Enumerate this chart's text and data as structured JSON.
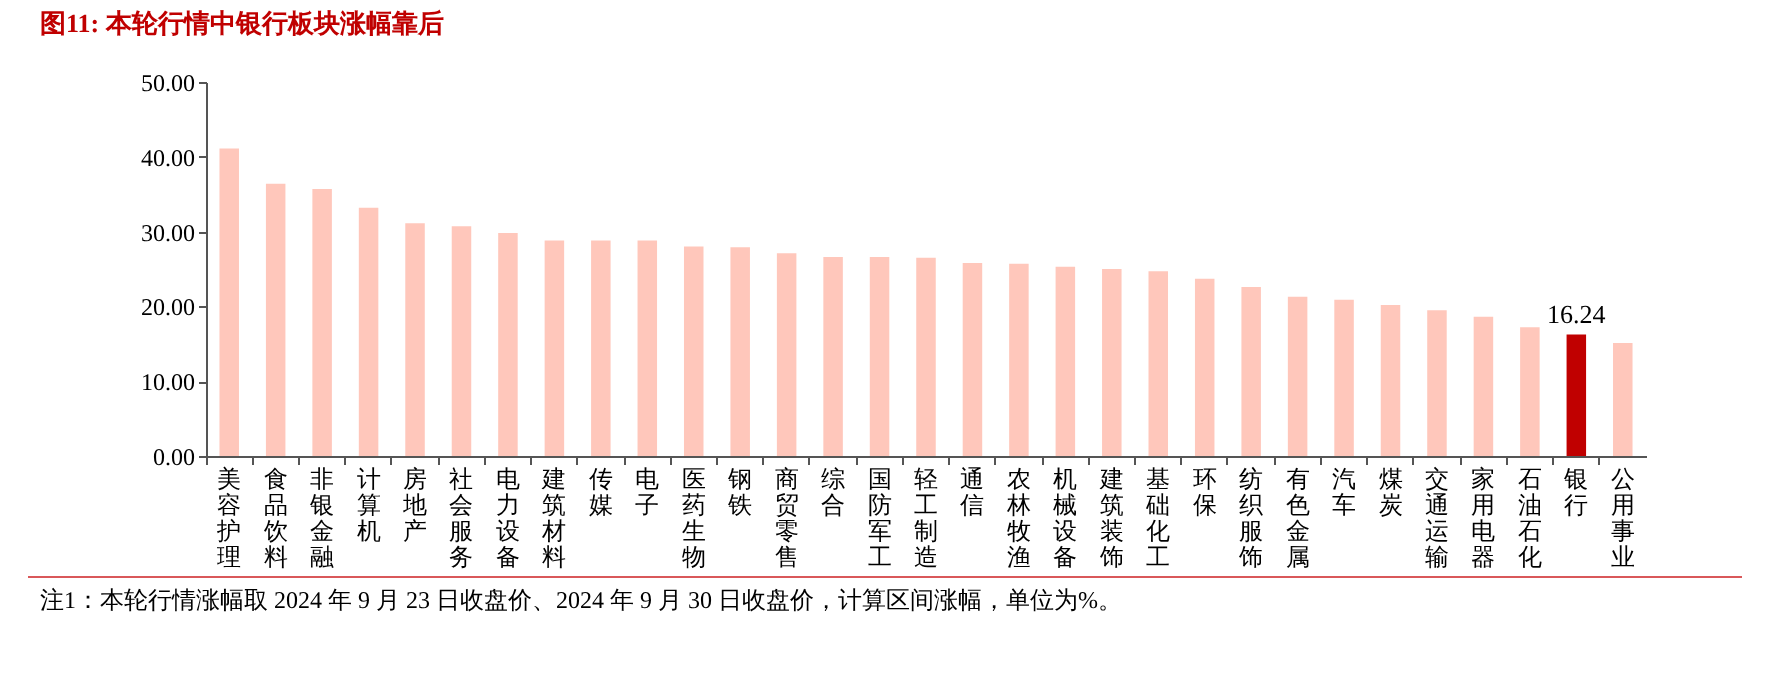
{
  "chart_data": {
    "type": "bar",
    "title": "图11:   本轮行情中银行板块涨幅靠后",
    "categories": [
      "美容护理",
      "食品饮料",
      "非银金融",
      "计算机",
      "房地产",
      "社会服务",
      "电力设备",
      "建筑材料",
      "传媒",
      "电子",
      "医药生物",
      "钢铁",
      "商贸零售",
      "综合",
      "国防军工",
      "轻工制造",
      "通信",
      "农林牧渔",
      "机械设备",
      "建筑装饰",
      "基础化工",
      "环保",
      "纺织服饰",
      "有色金属",
      "汽车",
      "煤炭",
      "交通运输",
      "家用电器",
      "石油石化",
      "银行",
      "公用事业"
    ],
    "values": [
      41.1,
      36.4,
      35.7,
      33.2,
      31.1,
      30.7,
      29.8,
      28.8,
      28.8,
      28.8,
      28.0,
      27.9,
      27.1,
      26.6,
      26.6,
      26.5,
      25.8,
      25.7,
      25.3,
      25.0,
      24.7,
      23.7,
      22.6,
      21.3,
      20.9,
      20.2,
      19.5,
      18.6,
      17.2,
      16.24,
      15.1
    ],
    "colors": [
      "#ffc7bb",
      "#ffc7bb",
      "#ffc7bb",
      "#ffc7bb",
      "#ffc7bb",
      "#ffc7bb",
      "#ffc7bb",
      "#ffc7bb",
      "#ffc7bb",
      "#ffc7bb",
      "#ffc7bb",
      "#ffc7bb",
      "#ffc7bb",
      "#ffc7bb",
      "#ffc7bb",
      "#ffc7bb",
      "#ffc7bb",
      "#ffc7bb",
      "#ffc7bb",
      "#ffc7bb",
      "#ffc7bb",
      "#ffc7bb",
      "#ffc7bb",
      "#ffc7bb",
      "#ffc7bb",
      "#ffc7bb",
      "#ffc7bb",
      "#ffc7bb",
      "#ffc7bb",
      "#c00000",
      "#ffc7bb"
    ],
    "value_labels": [
      null,
      null,
      null,
      null,
      null,
      null,
      null,
      null,
      null,
      null,
      null,
      null,
      null,
      null,
      null,
      null,
      null,
      null,
      null,
      null,
      null,
      null,
      null,
      null,
      null,
      null,
      null,
      null,
      null,
      "16.24",
      null
    ],
    "ylim": [
      0,
      50
    ],
    "yticks": [
      {
        "value": 0,
        "label": "0.00"
      },
      {
        "value": 10,
        "label": "10.00"
      },
      {
        "value": 20,
        "label": "20.00"
      },
      {
        "value": 30,
        "label": "30.00"
      },
      {
        "value": 40,
        "label": "40.00"
      },
      {
        "value": 50,
        "label": "50.00"
      }
    ],
    "grid": false,
    "annotations": [
      "注1：本轮行情涨幅取 2024 年 9 月 23 日收盘价、2024 年 9 月 30 日收盘价，计算区间涨幅，单位为%。"
    ]
  }
}
